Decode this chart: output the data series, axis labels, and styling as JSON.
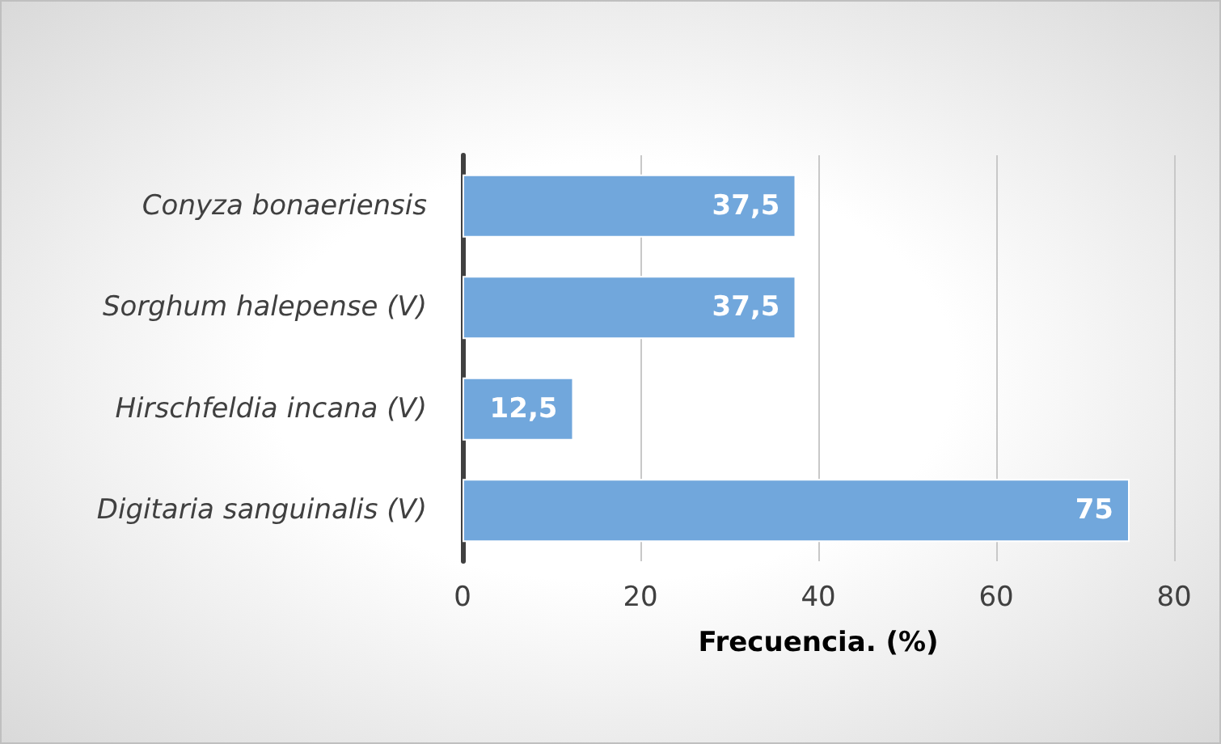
{
  "chart_data": {
    "type": "bar",
    "orientation": "horizontal",
    "categories": [
      "Conyza bonaeriensis",
      "Sorghum halepense (V)",
      "Hirschfeldia incana (V)",
      "Digitaria sanguinalis (V)"
    ],
    "values": [
      37.5,
      37.5,
      12.5,
      75
    ],
    "value_labels": [
      "37,5",
      "37,5",
      "12,5",
      "75"
    ],
    "color": "#71a7dc",
    "xlim": [
      0,
      80
    ],
    "xticks": [
      0,
      20,
      40,
      60,
      80
    ],
    "xlabel": "Frecuencia. (%)",
    "grid": "x"
  }
}
